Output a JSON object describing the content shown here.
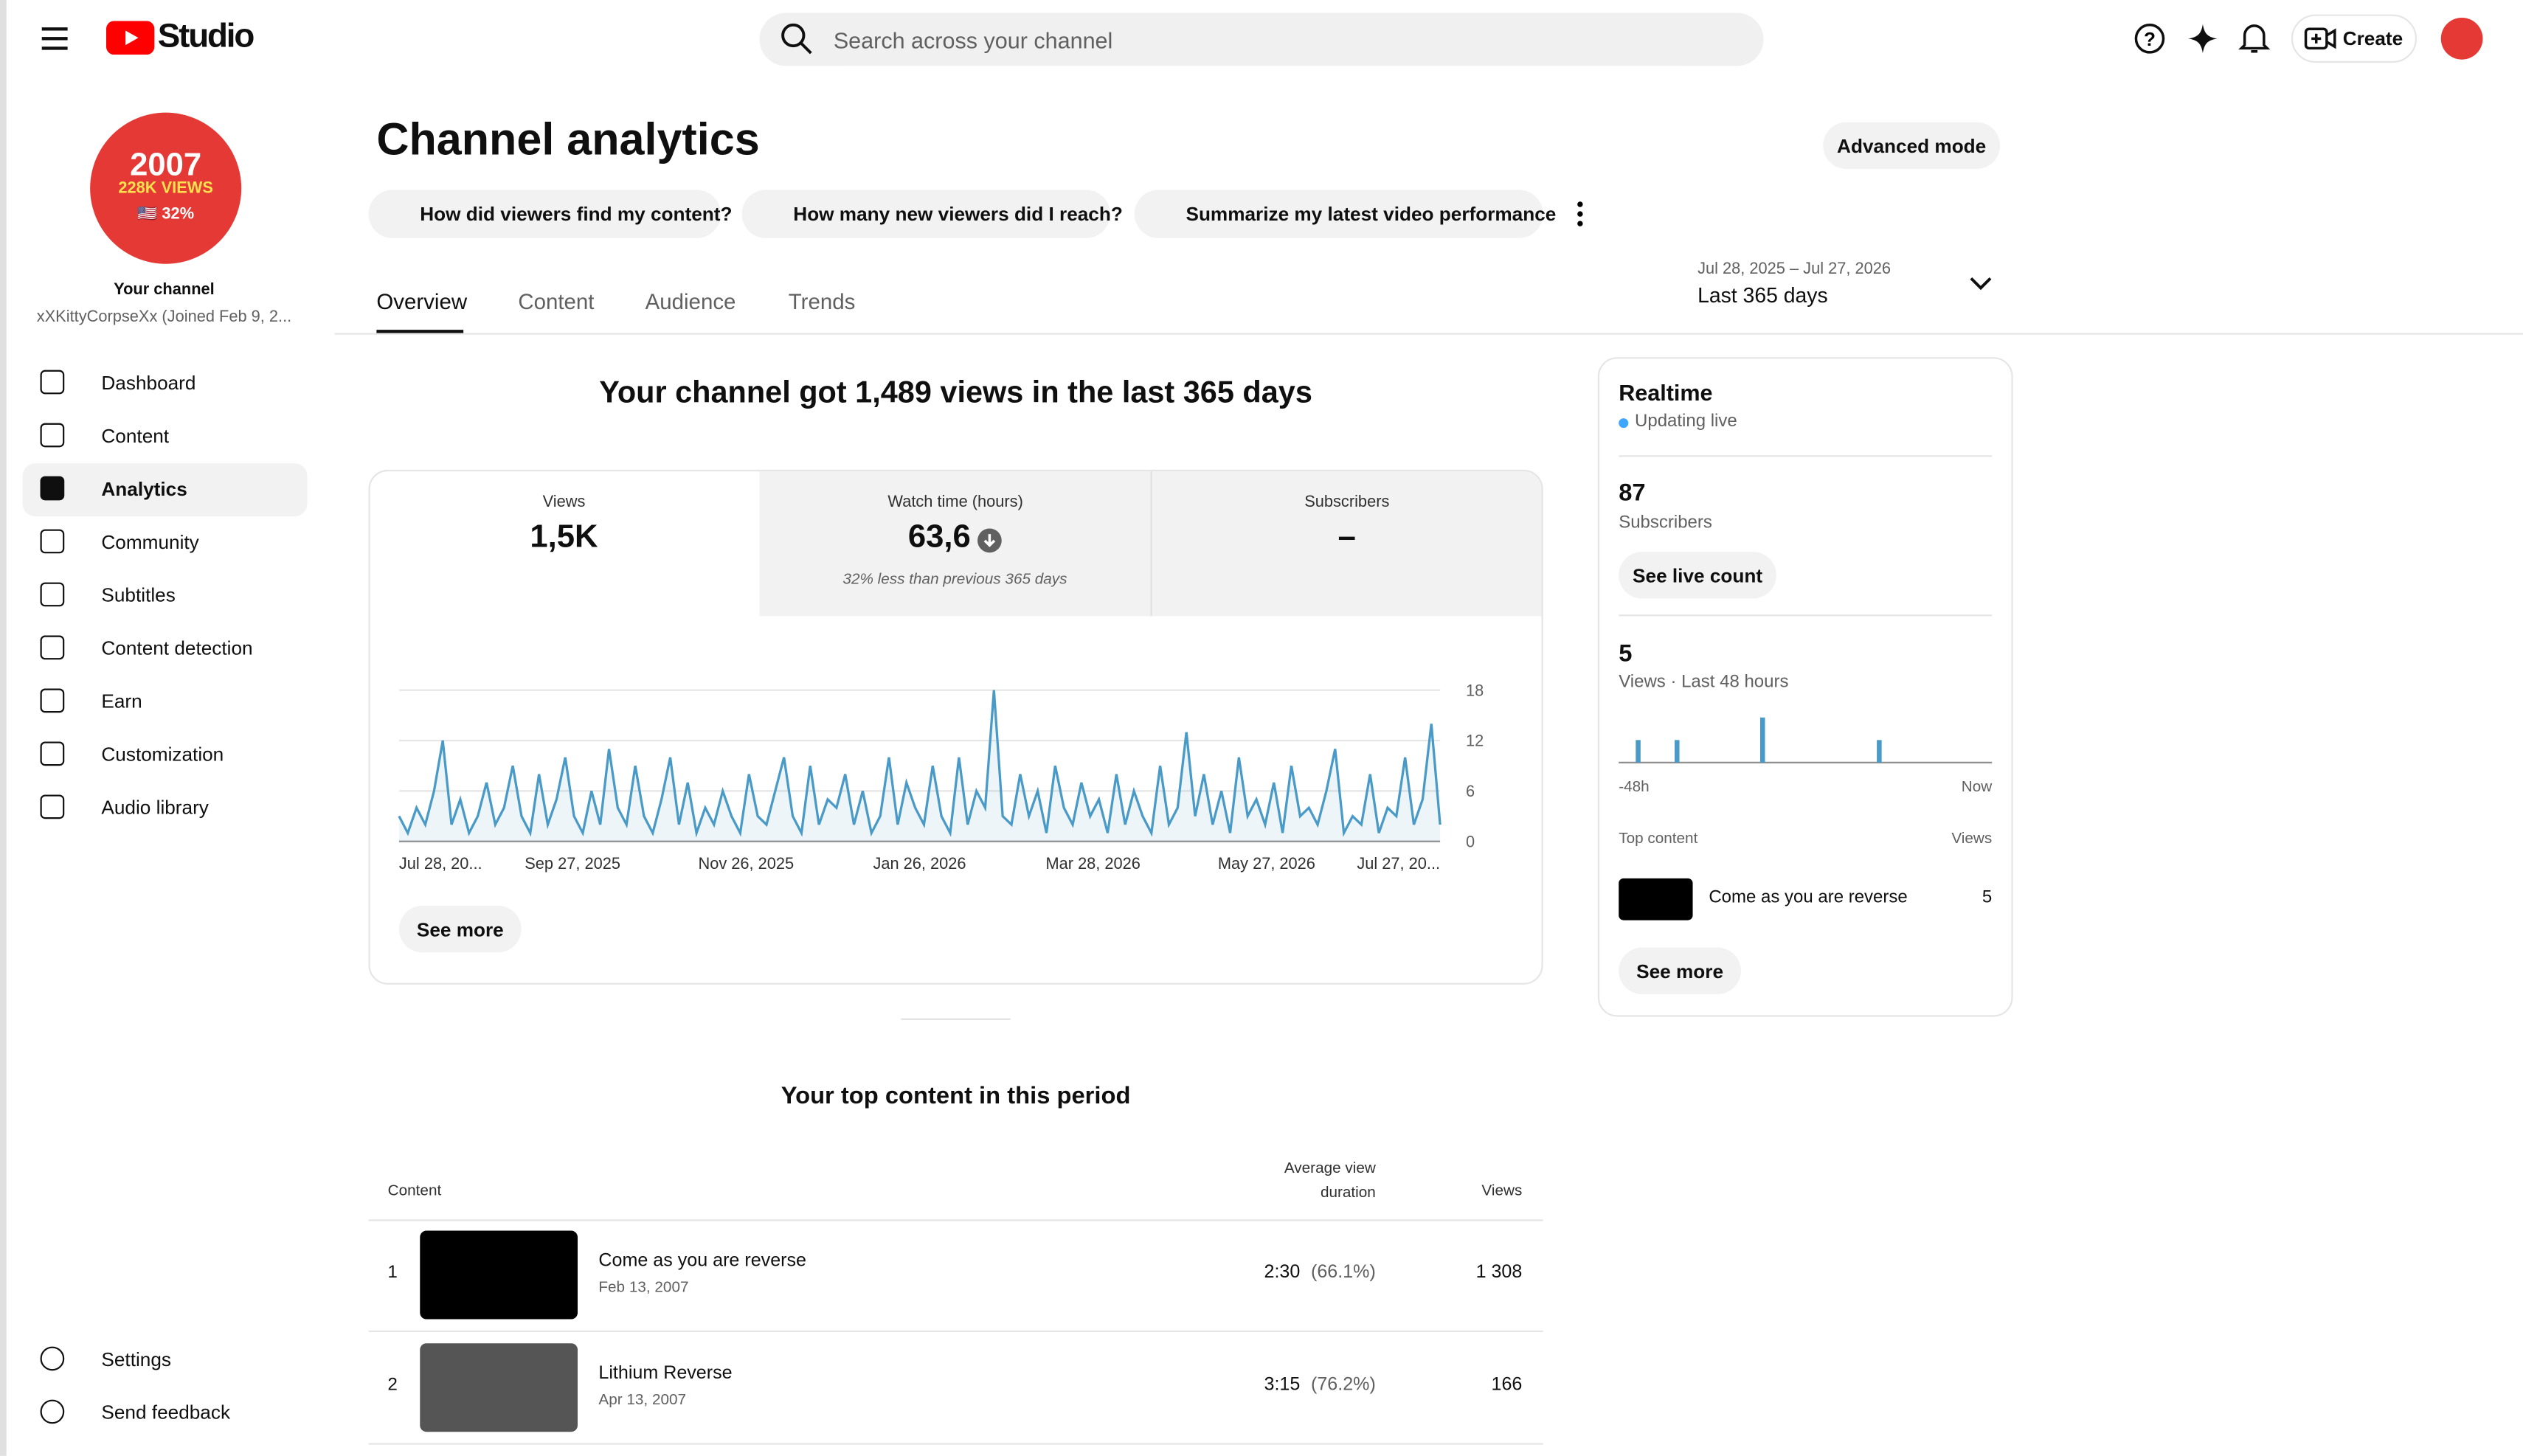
{
  "header": {
    "logo": "Studio",
    "search_placeholder": "Search across your channel",
    "create": "Create"
  },
  "sidebar": {
    "avatar": {
      "year": "2007",
      "views": "228K VIEWS",
      "pct": "🇺🇸 32%"
    },
    "channel_label": "Your channel",
    "channel_name": "xXKittyCorpseXx (Joined Feb 9, 2...",
    "nav": [
      "Dashboard",
      "Content",
      "Analytics",
      "Community",
      "Subtitles",
      "Content detection",
      "Earn",
      "Customization",
      "Audio library"
    ],
    "bottom": [
      "Settings",
      "Send feedback"
    ]
  },
  "page": {
    "title": "Channel analytics",
    "advanced": "Advanced mode",
    "prompts": [
      "How did viewers find my content?",
      "How many new viewers did I reach?",
      "Summarize my latest video performance"
    ],
    "tabs": [
      "Overview",
      "Content",
      "Audience",
      "Trends"
    ],
    "date_range": "Jul 28, 2025 – Jul 27, 2026",
    "period": "Last 365 days"
  },
  "overview": {
    "headline": "Your channel got 1,489 views in the last 365 days",
    "cards": [
      {
        "label": "Views",
        "value": "1,5K"
      },
      {
        "label": "Watch time (hours)",
        "value": "63,6",
        "note": "32% less than previous 365 days"
      },
      {
        "label": "Subscribers",
        "value": "–"
      }
    ],
    "see_more": "See more"
  },
  "chart_data": [
    {
      "type": "line",
      "color": "#4a9ac8",
      "grid": true,
      "ylim": [
        0,
        18
      ],
      "yticks": [
        0,
        6,
        12,
        18
      ],
      "x_labels": [
        "Jul 28, 20...",
        "Sep 27, 2025",
        "Nov 26, 2025",
        "Jan 26, 2026",
        "Mar 28, 2026",
        "May 27, 2026",
        "Jul 27, 20..."
      ],
      "values": [
        3,
        1,
        4,
        2,
        6,
        12,
        2,
        5,
        1,
        3,
        7,
        2,
        4,
        9,
        3,
        1,
        8,
        2,
        5,
        10,
        3,
        1,
        6,
        2,
        11,
        4,
        2,
        9,
        3,
        1,
        5,
        10,
        2,
        7,
        1,
        4,
        2,
        6,
        3,
        1,
        8,
        3,
        2,
        6,
        10,
        3,
        1,
        9,
        2,
        5,
        4,
        8,
        2,
        6,
        1,
        3,
        10,
        2,
        7,
        4,
        2,
        9,
        3,
        1,
        10,
        2,
        6,
        4,
        18,
        3,
        2,
        8,
        3,
        6,
        1,
        9,
        4,
        2,
        7,
        3,
        5,
        1,
        8,
        2,
        6,
        3,
        1,
        9,
        2,
        4,
        13,
        3,
        8,
        2,
        6,
        1,
        10,
        3,
        5,
        2,
        7,
        1,
        9,
        3,
        4,
        2,
        6,
        11,
        1,
        3,
        2,
        8,
        1,
        4,
        3,
        10,
        2,
        5,
        14,
        2
      ]
    },
    {
      "type": "bar",
      "color": "#4a9ac8",
      "x_labels": [
        "-48h",
        "Now"
      ],
      "values": [
        0,
        0,
        1,
        0,
        0,
        0,
        0,
        1,
        0,
        0,
        0,
        0,
        0,
        0,
        0,
        0,
        0,
        0,
        2,
        0,
        0,
        0,
        0,
        0,
        0,
        0,
        0,
        0,
        0,
        0,
        0,
        0,
        0,
        1,
        0,
        0,
        0,
        0,
        0,
        0,
        0,
        0,
        0,
        0,
        0,
        0,
        0,
        0
      ]
    }
  ],
  "realtime": {
    "title": "Realtime",
    "status": "Updating live",
    "subscribers": "87",
    "subscribers_label": "Subscribers",
    "see_live": "See live count",
    "views": "5",
    "views_label": "Views · Last 48 hours",
    "top_content": "Top content",
    "views_col": "Views",
    "item": "Come as you are reverse",
    "item_views": "5",
    "see_more": "See more"
  },
  "top_content": {
    "title": "Your top content in this period",
    "columns": [
      "Content",
      "Average view duration",
      "Views"
    ],
    "rows": [
      {
        "rank": "1",
        "title": "Come as you are reverse",
        "date": "Feb 13, 2007",
        "duration": "2:30",
        "pct": "(66.1%)",
        "views": "1 308"
      },
      {
        "rank": "2",
        "title": "Lithium Reverse",
        "date": "Apr 13, 2007",
        "duration": "3:15",
        "pct": "(76.2%)",
        "views": "166"
      }
    ]
  }
}
